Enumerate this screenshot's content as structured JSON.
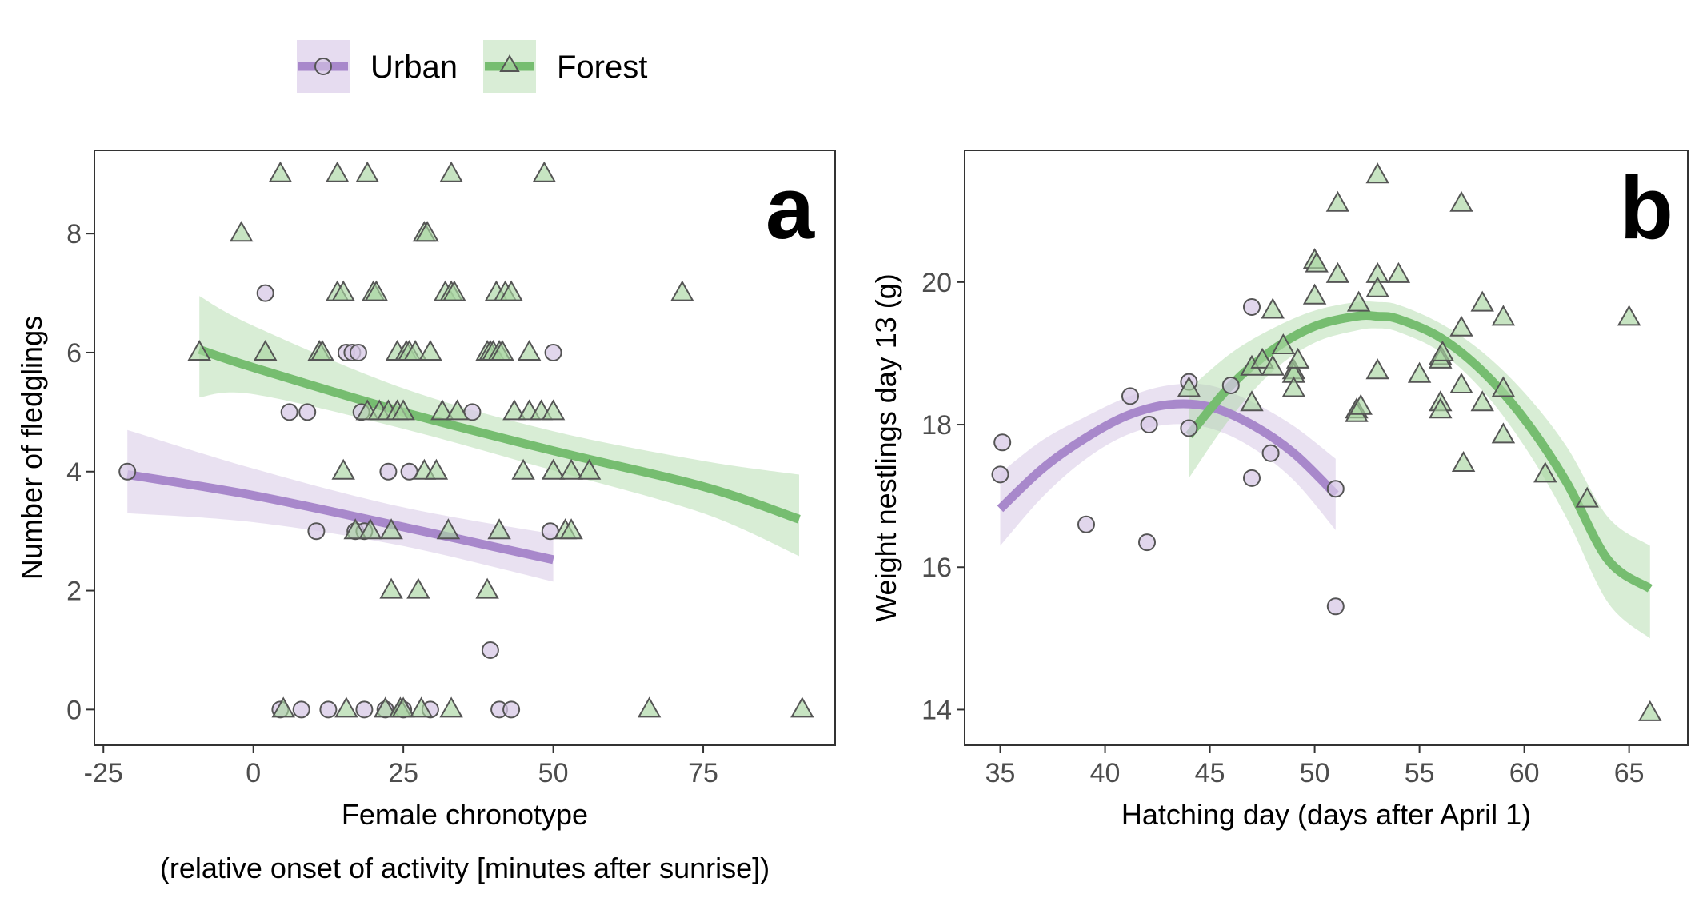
{
  "colors": {
    "urban": "#a888cb",
    "forest": "#76bd70",
    "urban_fill": "#d7c8e6",
    "forest_fill": "#a9d6a1"
  },
  "legend": [
    {
      "label": "Urban",
      "marker": "circle",
      "color_key": "urban"
    },
    {
      "label": "Forest",
      "marker": "triangle",
      "color_key": "forest"
    }
  ],
  "chart_data": [
    {
      "type": "scatter",
      "panel_label": "a",
      "xlabel": "Female chronotype",
      "xlabel2": "(relative onset of activity [minutes after sunrise])",
      "ylabel": "Number of fledglings",
      "xlim": [
        -26.5,
        97
      ],
      "ylim": [
        -0.6,
        9.4
      ],
      "xticks": [
        -25,
        0,
        25,
        50,
        75
      ],
      "yticks": [
        0,
        2,
        4,
        6,
        8
      ],
      "grid": false,
      "legend_position": "top-left",
      "series": [
        {
          "name": "Urban",
          "marker": "circle",
          "points": [
            [
              -21,
              4
            ],
            [
              2,
              7
            ],
            [
              4.5,
              0
            ],
            [
              6,
              5
            ],
            [
              8,
              0
            ],
            [
              9,
              5
            ],
            [
              10.5,
              3
            ],
            [
              12.5,
              0
            ],
            [
              15.5,
              6
            ],
            [
              16.5,
              6
            ],
            [
              17,
              3
            ],
            [
              17.5,
              6
            ],
            [
              18,
              5
            ],
            [
              18.5,
              0
            ],
            [
              18.5,
              3
            ],
            [
              22,
              0
            ],
            [
              22.5,
              4
            ],
            [
              25,
              0
            ],
            [
              26,
              4
            ],
            [
              29.5,
              0
            ],
            [
              36.5,
              5
            ],
            [
              39.5,
              1
            ],
            [
              41,
              0
            ],
            [
              43,
              0
            ],
            [
              49.5,
              3
            ],
            [
              50,
              6
            ]
          ],
          "fit": {
            "x": [
              -21,
              0,
              25,
              50
            ],
            "y": [
              3.95,
              3.6,
              3.07,
              2.52
            ],
            "lower": [
              3.3,
              3.15,
              2.75,
              2.15
            ],
            "upper": [
              4.7,
              4.05,
              3.4,
              2.95
            ]
          }
        },
        {
          "name": "Forest",
          "marker": "triangle",
          "points": [
            [
              -9,
              6
            ],
            [
              -2,
              8
            ],
            [
              2,
              6
            ],
            [
              4.5,
              9
            ],
            [
              5,
              0
            ],
            [
              11,
              6
            ],
            [
              11.5,
              6
            ],
            [
              14,
              9
            ],
            [
              14,
              7
            ],
            [
              15,
              4
            ],
            [
              15,
              7
            ],
            [
              15.5,
              0
            ],
            [
              17,
              3
            ],
            [
              19,
              9
            ],
            [
              19,
              5
            ],
            [
              19.5,
              3
            ],
            [
              20,
              7
            ],
            [
              20.5,
              7
            ],
            [
              21,
              5
            ],
            [
              22,
              0
            ],
            [
              22.5,
              5
            ],
            [
              23,
              2
            ],
            [
              23,
              3
            ],
            [
              24,
              6
            ],
            [
              24,
              5
            ],
            [
              24.5,
              0
            ],
            [
              25,
              0
            ],
            [
              25,
              5
            ],
            [
              25.5,
              6
            ],
            [
              26,
              6
            ],
            [
              27,
              6
            ],
            [
              27.5,
              2
            ],
            [
              28,
              0
            ],
            [
              28.5,
              4
            ],
            [
              28.5,
              8
            ],
            [
              29,
              8
            ],
            [
              29.5,
              6
            ],
            [
              30.5,
              4
            ],
            [
              31.5,
              5
            ],
            [
              32,
              7
            ],
            [
              32.5,
              3
            ],
            [
              33,
              9
            ],
            [
              33,
              7
            ],
            [
              33,
              0
            ],
            [
              33.5,
              7
            ],
            [
              34,
              5
            ],
            [
              39,
              6
            ],
            [
              39,
              2
            ],
            [
              39.5,
              6
            ],
            [
              40,
              6
            ],
            [
              40.5,
              7
            ],
            [
              41,
              3
            ],
            [
              41,
              6
            ],
            [
              41.5,
              6
            ],
            [
              42,
              7
            ],
            [
              43,
              7
            ],
            [
              43.5,
              5
            ],
            [
              45,
              4
            ],
            [
              46,
              5
            ],
            [
              46,
              6
            ],
            [
              48,
              5
            ],
            [
              48.5,
              9
            ],
            [
              50,
              5
            ],
            [
              50,
              4
            ],
            [
              52,
              3
            ],
            [
              53,
              3
            ],
            [
              53,
              4
            ],
            [
              56,
              4
            ],
            [
              66,
              0
            ],
            [
              71.5,
              7
            ],
            [
              91.5,
              0
            ]
          ],
          "fit": {
            "x": [
              -9,
              0,
              25,
              50,
              75,
              91
            ],
            "y": [
              6.05,
              5.75,
              5.0,
              4.35,
              3.75,
              3.2
            ],
            "lower": [
              5.25,
              5.3,
              4.72,
              4.02,
              3.3,
              2.58
            ],
            "upper": [
              6.95,
              6.45,
              5.4,
              4.68,
              4.18,
              3.95
            ]
          }
        }
      ]
    },
    {
      "type": "scatter",
      "panel_label": "b",
      "xlabel": "Hatching day (days after April 1)",
      "ylabel": "Weight nestlings day 13 (g)",
      "xlim": [
        33.3,
        67.8
      ],
      "ylim": [
        13.5,
        21.85
      ],
      "xticks": [
        35,
        40,
        45,
        50,
        55,
        60,
        65
      ],
      "yticks": [
        14,
        16,
        18,
        20
      ],
      "grid": false,
      "series": [
        {
          "name": "Urban",
          "marker": "circle",
          "points": [
            [
              35,
              17.3
            ],
            [
              35.1,
              17.75
            ],
            [
              39.1,
              16.6
            ],
            [
              41.2,
              18.4
            ],
            [
              42,
              16.35
            ],
            [
              42.1,
              18
            ],
            [
              44,
              18.6
            ],
            [
              44,
              17.95
            ],
            [
              46,
              18.55
            ],
            [
              47,
              19.65
            ],
            [
              47,
              17.25
            ],
            [
              47.9,
              17.6
            ],
            [
              51,
              17.1
            ],
            [
              51,
              15.45
            ]
          ],
          "fit": {
            "x": [
              35,
              37,
              39,
              41,
              43,
              45,
              47,
              49,
              51
            ],
            "y": [
              16.82,
              17.38,
              17.8,
              18.12,
              18.28,
              18.25,
              18.0,
              17.6,
              17.02
            ],
            "lower": [
              16.3,
              16.98,
              17.5,
              17.85,
              18.0,
              17.95,
              17.68,
              17.22,
              16.52
            ],
            "upper": [
              17.32,
              17.78,
              18.1,
              18.38,
              18.55,
              18.55,
              18.32,
              17.98,
              17.52
            ]
          }
        },
        {
          "name": "Forest",
          "marker": "triangle",
          "points": [
            [
              44,
              18.5
            ],
            [
              47,
              18.3
            ],
            [
              47,
              18.8
            ],
            [
              47.5,
              18.9
            ],
            [
              48,
              19.6
            ],
            [
              48,
              18.8
            ],
            [
              48.5,
              19.1
            ],
            [
              49,
              18.75
            ],
            [
              49,
              18.7
            ],
            [
              49,
              18.5
            ],
            [
              49.2,
              18.9
            ],
            [
              50,
              20.3
            ],
            [
              50,
              19.8
            ],
            [
              50.1,
              20.25
            ],
            [
              51.1,
              21.1
            ],
            [
              51.1,
              20.1
            ],
            [
              52,
              18.2
            ],
            [
              52,
              18.15
            ],
            [
              52.1,
              19.7
            ],
            [
              52.2,
              18.25
            ],
            [
              53,
              21.5
            ],
            [
              53,
              20.1
            ],
            [
              53,
              19.9
            ],
            [
              53,
              18.75
            ],
            [
              54,
              20.1
            ],
            [
              55,
              18.7
            ],
            [
              56,
              18.95
            ],
            [
              56,
              18.9
            ],
            [
              56,
              18.3
            ],
            [
              56,
              18.2
            ],
            [
              56.1,
              19
            ],
            [
              57,
              21.1
            ],
            [
              57,
              19.35
            ],
            [
              57,
              18.55
            ],
            [
              57.1,
              17.45
            ],
            [
              58,
              19.7
            ],
            [
              58,
              18.3
            ],
            [
              59,
              19.5
            ],
            [
              59,
              18.5
            ],
            [
              59,
              17.85
            ],
            [
              61,
              17.3
            ],
            [
              63,
              16.95
            ],
            [
              65,
              19.5
            ],
            [
              66,
              13.95
            ]
          ],
          "fit": {
            "x": [
              44,
              46,
              48,
              50,
              52,
              53,
              54,
              56,
              58,
              60,
              62,
              64,
              66
            ],
            "y": [
              17.85,
              18.55,
              19.05,
              19.38,
              19.52,
              19.52,
              19.48,
              19.22,
              18.75,
              18.08,
              17.2,
              16.1,
              15.7
            ],
            "lower": [
              17.25,
              18.1,
              18.75,
              19.15,
              19.32,
              19.35,
              19.3,
              19.02,
              18.48,
              17.7,
              16.7,
              15.5,
              15.0
            ],
            "upper": [
              18.5,
              19.0,
              19.35,
              19.6,
              19.72,
              19.72,
              19.68,
              19.42,
              19.02,
              18.45,
              17.7,
              16.7,
              16.3
            ]
          }
        }
      ]
    }
  ]
}
